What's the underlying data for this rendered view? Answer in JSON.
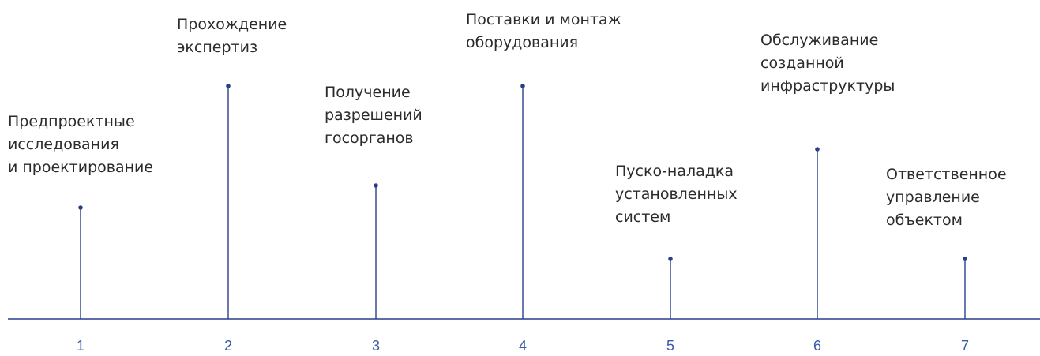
{
  "colors": {
    "line": "#2a3f8c",
    "number": "#3a5aa8",
    "text": "#2b2b2b"
  },
  "stages": [
    {
      "number": "1",
      "lines": [
        "Предпроектные",
        "исследования",
        "и проектирование"
      ]
    },
    {
      "number": "2",
      "lines": [
        "Прохождение",
        "экспертиз"
      ]
    },
    {
      "number": "3",
      "lines": [
        "Получение",
        "разрешений",
        "госорганов"
      ]
    },
    {
      "number": "4",
      "lines": [
        "Поставки и монтаж",
        "оборудования"
      ]
    },
    {
      "number": "5",
      "lines": [
        "Пуско-наладка",
        "установленных",
        "систем"
      ]
    },
    {
      "number": "6",
      "lines": [
        "Обслуживание",
        "созданной",
        "инфраструктуры"
      ]
    },
    {
      "number": "7",
      "lines": [
        "Ответственное",
        "управление",
        "объектом"
      ]
    }
  ]
}
